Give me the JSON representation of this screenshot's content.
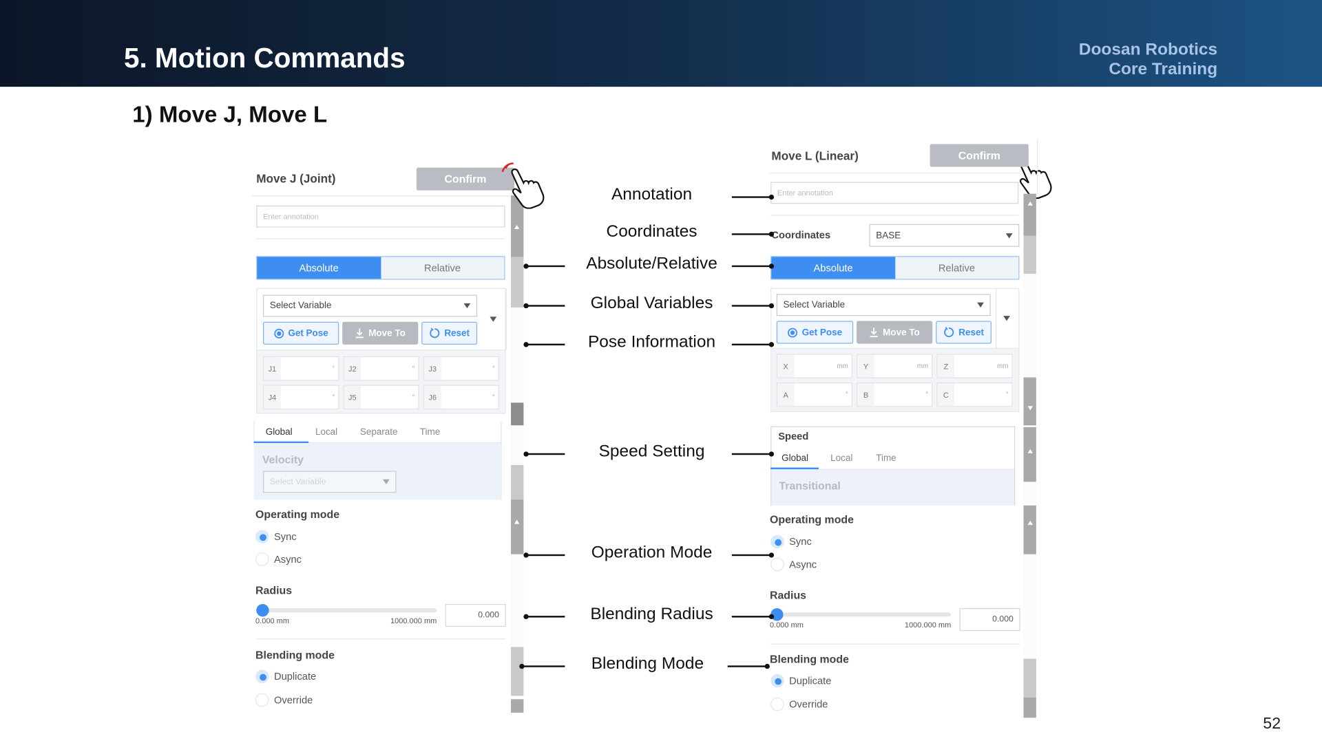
{
  "slide": {
    "title": "5. Motion Commands",
    "brand_line1": "Doosan Robotics",
    "brand_line2": "Core Training",
    "subtitle": "1) Move J, Move L",
    "page_number": "52",
    "colors": {
      "header_start": "#0c1627",
      "header_end": "#1c5384",
      "accent": "#3d8ef0",
      "brand_text": "#a9c3e6"
    }
  },
  "callouts": [
    "Annotation",
    "Coordinates",
    "Absolute/Relative",
    "Global Variables",
    "Pose Information",
    "Speed Setting",
    "Operation Mode",
    "Blending Radius",
    "Blending Mode"
  ],
  "movej": {
    "title": "Move J (Joint)",
    "confirm": "Confirm",
    "annotation_placeholder": "Enter annotation",
    "absolute": "Absolute",
    "relative": "Relative",
    "select_variable": "Select Variable",
    "get_pose": "Get Pose",
    "move_to": "Move To",
    "reset": "Reset",
    "fields": [
      {
        "label": "J1",
        "unit": "°"
      },
      {
        "label": "J2",
        "unit": "°"
      },
      {
        "label": "J3",
        "unit": "°"
      },
      {
        "label": "J4",
        "unit": "°"
      },
      {
        "label": "J5",
        "unit": "°"
      },
      {
        "label": "J6",
        "unit": "°"
      }
    ],
    "speed_tabs": [
      "Global",
      "Local",
      "Separate",
      "Time"
    ],
    "velocity": "Velocity",
    "velocity_select": "Select Variable",
    "operating_mode": "Operating mode",
    "sync": "Sync",
    "async": "Async",
    "radius": "Radius",
    "radius_min": "0.000 mm",
    "radius_max": "1000.000 mm",
    "radius_value": "0.000",
    "blending_mode": "Blending mode",
    "duplicate": "Duplicate",
    "override": "Override"
  },
  "movel": {
    "title": "Move L (Linear)",
    "confirm": "Confirm",
    "annotation_placeholder": "Enter annotation",
    "coordinates": "Coordinates",
    "coordinates_value": "BASE",
    "absolute": "Absolute",
    "relative": "Relative",
    "select_variable": "Select Variable",
    "get_pose": "Get Pose",
    "move_to": "Move To",
    "reset": "Reset",
    "fields": [
      {
        "label": "X",
        "unit": "mm"
      },
      {
        "label": "Y",
        "unit": "mm"
      },
      {
        "label": "Z",
        "unit": "mm"
      },
      {
        "label": "A",
        "unit": "°"
      },
      {
        "label": "B",
        "unit": "°"
      },
      {
        "label": "C",
        "unit": "°"
      }
    ],
    "speed": "Speed",
    "speed_tabs": [
      "Global",
      "Local",
      "Time"
    ],
    "transitional": "Transitional",
    "operating_mode": "Operating mode",
    "sync": "Sync",
    "async": "Async",
    "radius": "Radius",
    "radius_min": "0.000 mm",
    "radius_max": "1000.000 mm",
    "radius_value": "0.000",
    "blending_mode": "Blending mode",
    "duplicate": "Duplicate",
    "override": "Override"
  }
}
